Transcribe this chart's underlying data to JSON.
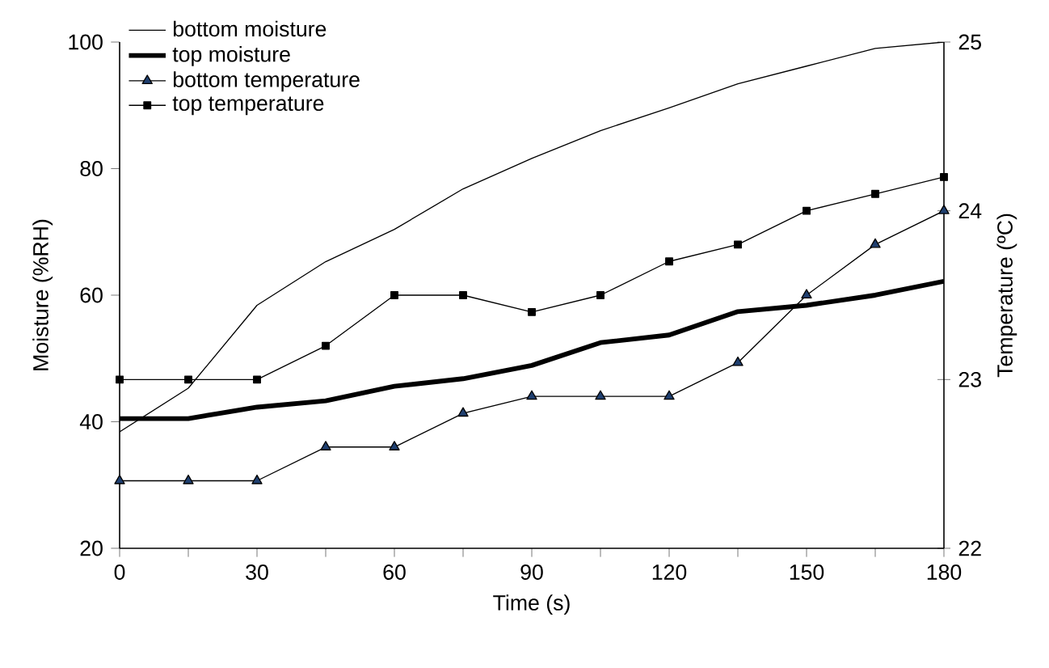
{
  "chart_data": {
    "type": "line",
    "xlabel": "Time (s)",
    "ylabel": "Moisture (%RH)",
    "y2label": "Temperature (ºC)",
    "x": [
      0,
      15,
      30,
      45,
      60,
      75,
      90,
      105,
      120,
      135,
      150,
      165,
      180
    ],
    "xlim": [
      0,
      180
    ],
    "xticks": [
      0,
      {
        "value": 15,
        "label": null
      },
      30,
      {
        "value": 45,
        "label": null
      },
      60,
      {
        "value": 75,
        "label": null
      },
      90,
      {
        "value": 105,
        "label": null
      },
      120,
      {
        "value": 135,
        "label": null
      },
      150,
      {
        "value": 165,
        "label": null
      },
      180
    ],
    "ylim": [
      20,
      100
    ],
    "yticks": [
      20,
      40,
      60,
      80,
      100
    ],
    "y2lim": [
      22,
      25
    ],
    "y2ticks": [
      22,
      23,
      24,
      25
    ],
    "legend": "top left",
    "grid": false,
    "series": [
      {
        "name": "bottom moisture",
        "color": "#000000",
        "marker": "none",
        "values": [
          38.4,
          45.3,
          58.4,
          65.3,
          70.4,
          76.8,
          81.6,
          86,
          89.6,
          93.4,
          96.2,
          99,
          100
        ]
      },
      {
        "name": "top moisture",
        "color": "#000000",
        "marker": "none",
        "values": [
          40.5,
          40.5,
          42.3,
          43.3,
          45.6,
          46.8,
          48.9,
          52.5,
          53.7,
          57.4,
          58.4,
          60,
          62.2
        ]
      },
      {
        "name": "bottom temperature",
        "color": "#000000",
        "marker": "triangle",
        "axis": "y2",
        "values": [
          22.4,
          22.4,
          22.4,
          22.6,
          22.6,
          22.8,
          22.9,
          22.9,
          22.9,
          23.1,
          23.5,
          23.8,
          24.0
        ]
      },
      {
        "name": "top temperature",
        "color": "#000000",
        "marker": "square",
        "axis": "y2",
        "values": [
          23.0,
          23.0,
          23.0,
          23.2,
          23.5,
          23.5,
          23.4,
          23.5,
          23.7,
          23.8,
          24.0,
          24.1,
          24.2
        ]
      }
    ]
  }
}
